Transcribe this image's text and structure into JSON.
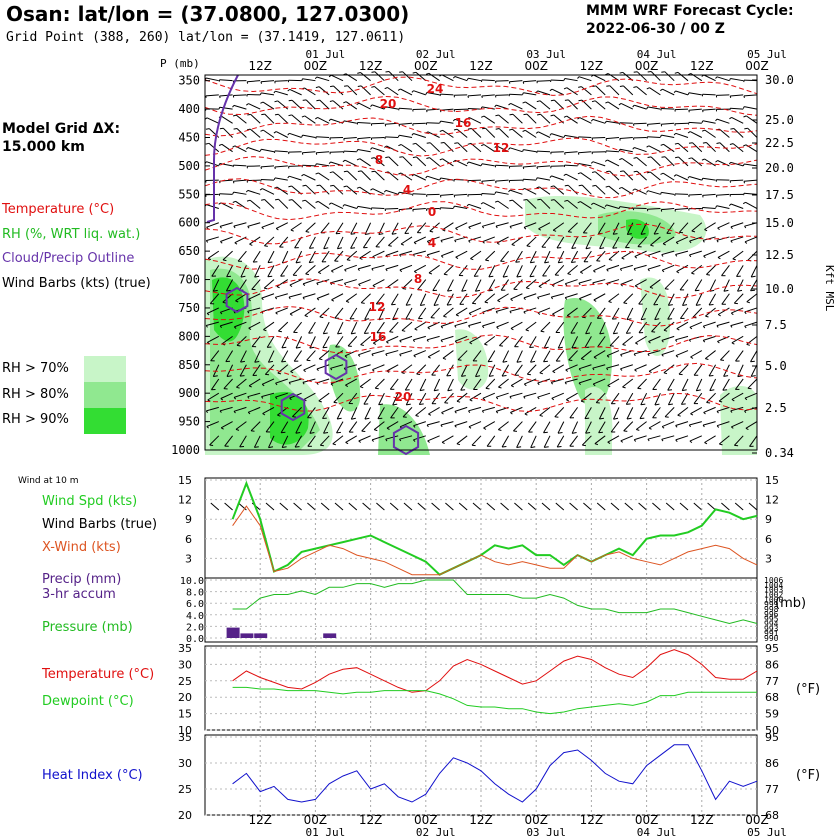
{
  "header": {
    "title": "Osan:  lat/lon = (37.0800, 127.0300)",
    "grid_point": "Grid Point (388, 260) lat/lon = (37.1419, 127.0611)",
    "cycle_line1": "MMM WRF Forecast Cycle:",
    "cycle_line2": "2022-06-30 / 00  Z"
  },
  "model_grid": {
    "line1": "Model Grid ΔX:",
    "line2": " 15.000 km"
  },
  "legend": {
    "temperature": "Temperature (°C)",
    "rh": "RH (%, WRT liq. wat.)",
    "cloud": "Cloud/Precip Outline",
    "wind": "Wind Barbs (kts) (true)",
    "rh70": "RH > 70%",
    "rh80": "RH > 80%",
    "rh90": "RH > 90%"
  },
  "colors": {
    "temperature": "#e01010",
    "rh70": "#c8f5c8",
    "rh80": "#90e890",
    "rh90": "#33dd33",
    "cloud": "#6633aa",
    "wind_speed": "#22cc22",
    "x_wind": "#dd5522",
    "pressure": "#22bb22",
    "dewpoint": "#22cc22",
    "heat_index": "#1111cc",
    "precip": "#552288"
  },
  "time_axis": {
    "top_dates": [
      "01 Jul",
      "02 Jul",
      "03 Jul",
      "04 Jul",
      "05 Jul"
    ],
    "bottom_dates": [
      "01 Jul",
      "02 Jul",
      "03 Jul",
      "04 Jul",
      "05 Jul"
    ],
    "hour_labels": [
      "12Z",
      "00Z",
      "12Z",
      "00Z",
      "12Z",
      "00Z",
      "12Z",
      "00Z",
      "12Z",
      "00Z"
    ]
  },
  "sounding": {
    "p_label": "P (mb)",
    "pressure_ticks": [
      "350",
      "400",
      "450",
      "500",
      "550",
      "600",
      "650",
      "700",
      "750",
      "800",
      "850",
      "900",
      "950",
      "1000"
    ],
    "height_ticks": [
      "30.0",
      "25.0",
      "22.5",
      "20.0",
      "17.5",
      "15.0",
      "12.5",
      "10.0",
      "7.5",
      "5.0",
      "2.5",
      "0.34"
    ],
    "height_unit": "Kft MSL",
    "temp_labels": [
      "24",
      "20",
      "16",
      "12",
      "8",
      "4",
      "0",
      "4",
      "8",
      "12",
      "16",
      "20"
    ]
  },
  "panels": {
    "wind_title": "Wind at 10 m",
    "wind_speed": "Wind Spd (kts)",
    "wind_barbs": "Wind Barbs (true)",
    "x_wind": "X-Wind (kts)",
    "precip1": "Precip (mm)",
    "precip2": "3-hr accum",
    "pressure": "Pressure (mb)",
    "pressure_unit": "(mb)",
    "temperature": "Temperature (°C)",
    "dewpoint": "Dewpoint (°C)",
    "temp_unit_f": "(°F)",
    "heat_index": "Heat Index (°C)",
    "hi_unit_f": "(°F)",
    "wind_left_ticks": [
      "15",
      "12",
      "9",
      "6",
      "3"
    ],
    "wind_right_ticks": [
      "15",
      "12",
      "9",
      "6",
      "3"
    ],
    "precip_ticks": [
      "10.0",
      "8.0",
      "6.0",
      "4.0",
      "2.0",
      "0.0"
    ],
    "press_ticks": [
      "1006",
      "1004",
      "1003",
      "1002",
      "1000",
      "999",
      "998",
      "996",
      "995",
      "994",
      "993",
      "991",
      "990"
    ],
    "temp_c_ticks": [
      "35",
      "30",
      "25",
      "20",
      "15",
      "10"
    ],
    "temp_f_ticks": [
      "95",
      "86",
      "77",
      "68",
      "59",
      "50"
    ],
    "hi_c_ticks": [
      "35",
      "30",
      "25",
      "20"
    ],
    "hi_f_ticks": [
      "95",
      "86",
      "77",
      "68"
    ]
  },
  "chart_data": {
    "type": "line",
    "x_hours": [
      6,
      9,
      12,
      15,
      18,
      21,
      24,
      27,
      30,
      33,
      36,
      39,
      42,
      45,
      48,
      51,
      54,
      57,
      60,
      63,
      66,
      69,
      72,
      75,
      78,
      81,
      84,
      87,
      90,
      93,
      96,
      99,
      102,
      105,
      108,
      111,
      114,
      117,
      120
    ],
    "series": [
      {
        "name": "Wind Spd (kts)",
        "values": [
          9,
          14.5,
          9,
          1,
          2,
          4,
          4.5,
          5,
          5.5,
          6,
          6.5,
          5.5,
          4.5,
          3.5,
          2.5,
          0.5,
          1.5,
          2.5,
          3.5,
          5,
          4.5,
          5,
          3.5,
          3.5,
          2,
          3.5,
          2.5,
          3.5,
          4.5,
          3.5,
          6,
          6.5,
          6.5,
          7,
          8,
          10.5,
          10,
          9,
          9.5
        ]
      },
      {
        "name": "X-Wind (kts)",
        "values": [
          8,
          11,
          8,
          1,
          1.5,
          3,
          4,
          5,
          4.5,
          3.5,
          3,
          2.5,
          1.5,
          0.5,
          0.5,
          0.5,
          1.5,
          2.5,
          3.5,
          2.5,
          2,
          2.5,
          2,
          1.5,
          1.5,
          3.5,
          2.5,
          3.5,
          4,
          3,
          2.5,
          2,
          3,
          4,
          4.5,
          5,
          4.5,
          3,
          2
        ]
      },
      {
        "name": "Pressure (mb)",
        "values": [
          998,
          998,
          1001,
          1002,
          1002,
          1003,
          1002,
          1004,
          1004,
          1005,
          1005,
          1004,
          1005,
          1005,
          1006,
          1006,
          1006,
          1002,
          1002,
          1002,
          1002,
          1001,
          1001,
          1002,
          1001,
          999,
          998,
          998,
          997,
          997,
          997,
          998,
          998,
          997,
          996,
          995,
          994,
          995,
          994
        ]
      },
      {
        "name": "Temperature (°C)",
        "values": [
          25,
          28,
          26,
          24.5,
          23,
          22.5,
          24.5,
          27,
          28.5,
          29,
          27,
          25,
          23,
          21.5,
          22,
          25,
          29.5,
          31.5,
          30,
          28,
          26,
          24,
          25,
          28,
          31,
          32.5,
          31.5,
          29,
          27,
          26,
          29,
          33,
          34.5,
          33,
          30,
          26,
          25.5,
          25.5,
          28
        ]
      },
      {
        "name": "Dewpoint (°C)",
        "values": [
          23,
          23,
          22.5,
          22.5,
          22,
          22,
          22,
          21.5,
          21,
          21.5,
          21.5,
          22,
          22,
          22,
          22,
          21,
          19.5,
          17.5,
          17,
          17,
          16.5,
          16.5,
          15.5,
          15,
          15.5,
          16.5,
          17,
          17.5,
          18,
          17.5,
          18.5,
          20.5,
          20.5,
          21.5,
          21.5,
          21.5,
          21.5,
          21.5,
          21.5
        ]
      },
      {
        "name": "Heat Index (°C)",
        "values": [
          26,
          28,
          24.5,
          25.5,
          23,
          22.5,
          23,
          26,
          27.5,
          28.5,
          25,
          26,
          23.5,
          22.5,
          24,
          28,
          31,
          30,
          28.5,
          26,
          24,
          22.5,
          25,
          29.5,
          32,
          32.5,
          30.5,
          28,
          26.5,
          26,
          29.5,
          31.5,
          33.5,
          33.5,
          28.5,
          23,
          26.5,
          25.5,
          26.5
        ]
      }
    ],
    "precip_mm": [
      {
        "hour": 6,
        "value": 1.8
      },
      {
        "hour": 9,
        "value": 0.8
      },
      {
        "hour": 12,
        "value": 0.8
      },
      {
        "hour": 27,
        "value": 0.8
      }
    ],
    "wind_ylim": [
      0,
      15
    ],
    "pressure_ylim": [
      990,
      1006
    ],
    "precip_ylim": [
      0,
      10
    ],
    "temp_ylim": [
      10,
      35
    ],
    "hi_ylim": [
      20,
      35
    ]
  }
}
